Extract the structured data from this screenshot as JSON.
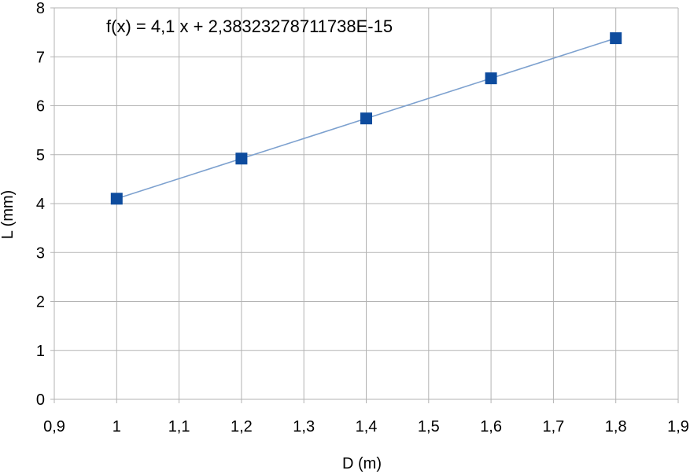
{
  "chart_data": {
    "type": "scatter",
    "xlabel": "D (m)",
    "ylabel": "L (mm)",
    "xlim": [
      0.9,
      1.9
    ],
    "ylim": [
      0,
      8
    ],
    "x_ticks": [
      "0,9",
      "1",
      "1,1",
      "1,2",
      "1,3",
      "1,4",
      "1,5",
      "1,6",
      "1,7",
      "1,8",
      "1,9"
    ],
    "y_ticks": [
      "0",
      "1",
      "2",
      "3",
      "4",
      "5",
      "6",
      "7",
      "8"
    ],
    "grid": true,
    "legend": "none",
    "series": [
      {
        "x": [
          1.0,
          1.2,
          1.4,
          1.6,
          1.8
        ],
        "y": [
          4.1,
          4.92,
          5.74,
          6.56,
          7.38
        ],
        "marker": "square",
        "color": "#0e4c9e"
      }
    ],
    "trendline": {
      "type": "linear",
      "slope": 4.1,
      "intercept": 2.38323278711738e-15,
      "color": "#7da1cf",
      "equation": "f(x) = 4,1 x + 2,38323278711738E-15"
    }
  }
}
